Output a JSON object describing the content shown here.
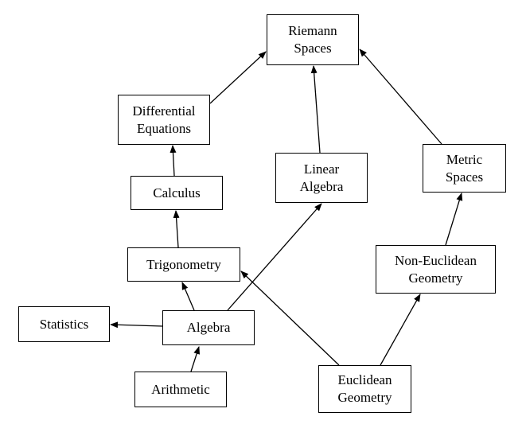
{
  "nodes": {
    "riemann": "Riemann\nSpaces",
    "differential_equations": "Differential\nEquations",
    "linear_algebra": "Linear\nAlgebra",
    "metric_spaces": "Metric\nSpaces",
    "calculus": "Calculus",
    "trigonometry": "Trigonometry",
    "non_euclidean": "Non-Euclidean\nGeometry",
    "statistics": "Statistics",
    "algebra": "Algebra",
    "arithmetic": "Arithmetic",
    "euclidean": "Euclidean\nGeometry"
  },
  "edges": [
    {
      "from": "arithmetic",
      "to": "algebra"
    },
    {
      "from": "algebra",
      "to": "statistics"
    },
    {
      "from": "algebra",
      "to": "trigonometry"
    },
    {
      "from": "algebra",
      "to": "linear_algebra"
    },
    {
      "from": "trigonometry",
      "to": "calculus"
    },
    {
      "from": "calculus",
      "to": "differential_equations"
    },
    {
      "from": "differential_equations",
      "to": "riemann"
    },
    {
      "from": "linear_algebra",
      "to": "riemann"
    },
    {
      "from": "metric_spaces",
      "to": "riemann"
    },
    {
      "from": "non_euclidean",
      "to": "metric_spaces"
    },
    {
      "from": "euclidean",
      "to": "non_euclidean"
    },
    {
      "from": "euclidean",
      "to": "trigonometry"
    }
  ]
}
